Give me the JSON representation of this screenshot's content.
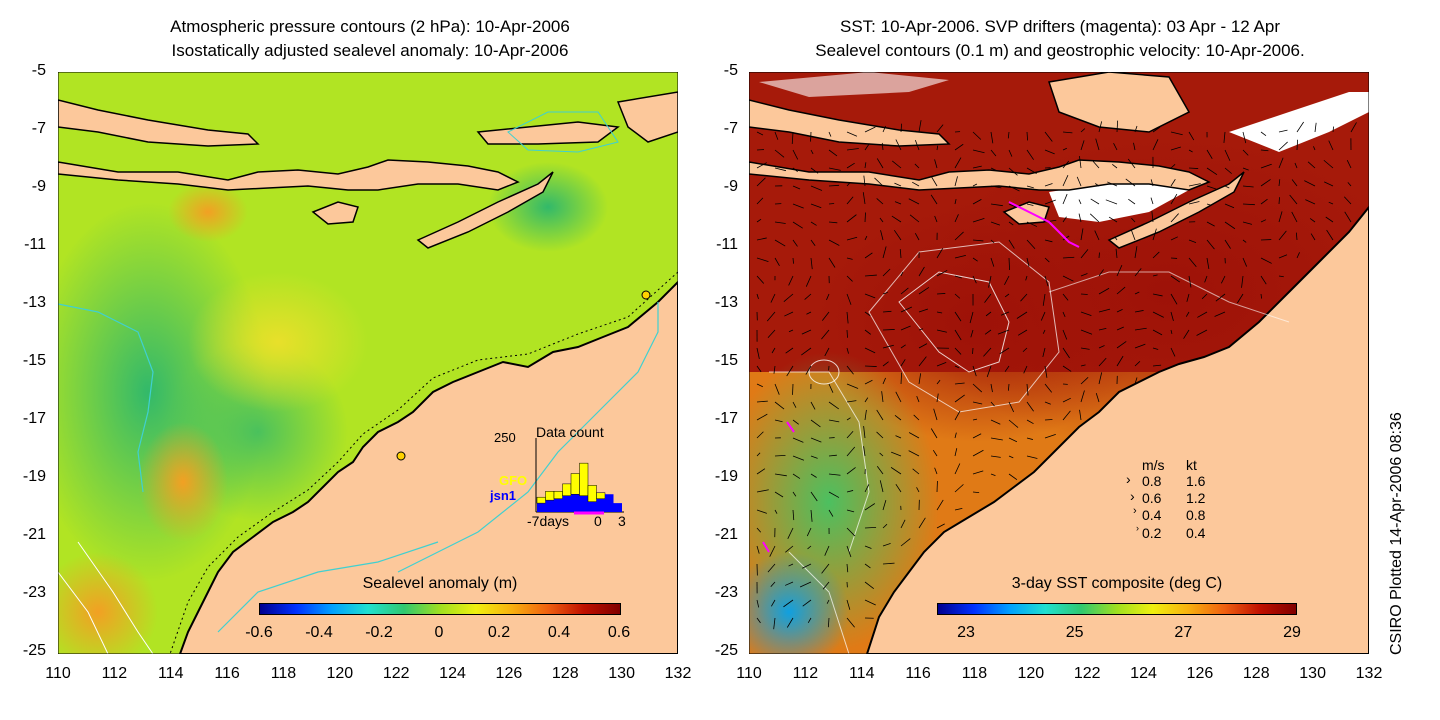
{
  "left_panel": {
    "title_line1": "Atmospheric pressure contours (2 hPa): 10-Apr-2006",
    "title_line2": "Isostatically adjusted sealevel anomaly: 10-Apr-2006",
    "colorbar": {
      "title": "Sealevel anomaly (m)",
      "ticks": [
        "-0.6",
        "-0.4",
        "-0.2",
        "0",
        "0.2",
        "0.4",
        "0.6"
      ]
    },
    "inset": {
      "title": "Data count",
      "ymax": "250",
      "series": [
        "GFO",
        "jsn1"
      ],
      "series_colors": [
        "#ffff00",
        "#0000ff"
      ],
      "xticks": [
        "-7days",
        "0",
        "3"
      ],
      "gfo_counts": [
        20,
        30,
        25,
        40,
        70,
        110,
        55,
        20,
        0,
        0
      ],
      "jsn1_counts": [
        30,
        40,
        45,
        55,
        60,
        55,
        35,
        45,
        60,
        30
      ]
    }
  },
  "right_panel": {
    "title_line1": "SST: 10-Apr-2006. SVP drifters (magenta): 03 Apr - 12 Apr",
    "title_line2": "Sealevel contours (0.1 m) and geostrophic velocity: 10-Apr-2006.",
    "colorbar": {
      "title": "3-day SST composite (deg C)",
      "ticks": [
        "23",
        "25",
        "27",
        "29"
      ]
    },
    "velocity_legend": {
      "header_ms": "m/s",
      "header_kt": "kt",
      "rows": [
        {
          "ms": "0.8",
          "kt": "1.6"
        },
        {
          "ms": "0.6",
          "kt": "1.2"
        },
        {
          "ms": "0.4",
          "kt": "0.8"
        },
        {
          "ms": "0.2",
          "kt": "0.4"
        }
      ]
    }
  },
  "axes": {
    "x_ticks": [
      "110",
      "112",
      "114",
      "116",
      "118",
      "120",
      "122",
      "124",
      "126",
      "128",
      "130",
      "132"
    ],
    "y_ticks": [
      "-5",
      "-7",
      "-9",
      "-11",
      "-13",
      "-15",
      "-17",
      "-19",
      "-21",
      "-23",
      "-25"
    ],
    "x_range": [
      110,
      132
    ],
    "y_range": [
      -25,
      -5
    ]
  },
  "credit": "CSIRO Plotted 14-Apr-2006 08:36",
  "colors": {
    "land": "#fcc89b",
    "coast": "#000000",
    "bathymetry_contour": "#40d0d0",
    "drifter": "#ff00ff"
  }
}
